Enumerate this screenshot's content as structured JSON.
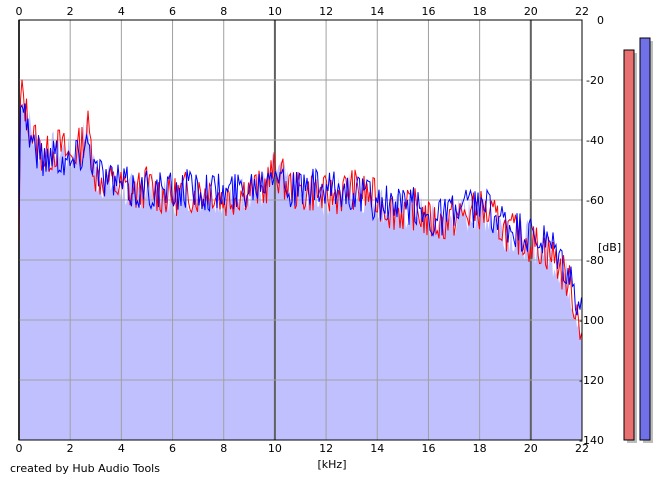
{
  "chart_data": {
    "type": "line",
    "xlabel": "[kHz]",
    "ylabel": "[dB]",
    "xlim": [
      0,
      22
    ],
    "ylim": [
      -140,
      0
    ],
    "x_ticks": [
      0,
      2,
      4,
      6,
      8,
      10,
      12,
      14,
      16,
      18,
      20,
      22
    ],
    "y_ticks": [
      0,
      -20,
      -40,
      -60,
      -80,
      -100,
      -120,
      -140
    ],
    "x_tick_labels": [
      "0",
      "2",
      "4",
      "6",
      "8",
      "10",
      "12",
      "14",
      "16",
      "18",
      "20",
      "22"
    ],
    "y_tick_labels": [
      "0",
      "-20",
      "-40",
      "-60",
      "-80",
      "-100",
      "-120",
      "-140"
    ],
    "grid": true,
    "fill_color": "#c0c0ff",
    "series": [
      {
        "color": "#ff0000",
        "x": [
          0,
          0.05,
          0.15,
          0.3,
          0.5,
          0.75,
          1.0,
          1.3,
          1.6,
          2.0,
          2.4,
          2.7,
          3.0,
          3.5,
          4.0,
          4.5,
          5.0,
          5.5,
          6.0,
          6.5,
          7.0,
          7.5,
          8.0,
          8.5,
          9.0,
          9.5,
          10.0,
          10.5,
          11.0,
          11.5,
          12.0,
          12.5,
          13.0,
          13.5,
          14.0,
          14.5,
          15.0,
          15.5,
          16.0,
          16.5,
          17.0,
          17.5,
          18.0,
          18.5,
          19.0,
          19.5,
          20.0,
          20.5,
          21.0,
          21.5,
          21.9,
          22.0
        ],
        "values": [
          -80,
          -28,
          -24,
          -32,
          -38,
          -42,
          -46,
          -44,
          -42,
          -46,
          -42,
          -36,
          -52,
          -54,
          -56,
          -58,
          -55,
          -58,
          -59,
          -57,
          -58,
          -56,
          -60,
          -58,
          -56,
          -57,
          -50,
          -55,
          -58,
          -57,
          -59,
          -58,
          -56,
          -58,
          -60,
          -63,
          -64,
          -63,
          -67,
          -68,
          -66,
          -65,
          -63,
          -66,
          -70,
          -72,
          -74,
          -76,
          -80,
          -88,
          -100,
          -103
        ]
      },
      {
        "color": "#0000ff",
        "x": [
          0,
          0.05,
          0.15,
          0.3,
          0.5,
          0.75,
          1.0,
          1.3,
          1.6,
          2.0,
          2.4,
          2.7,
          3.0,
          3.5,
          4.0,
          4.5,
          5.0,
          5.5,
          6.0,
          6.5,
          7.0,
          7.5,
          8.0,
          8.5,
          9.0,
          9.5,
          10.0,
          10.5,
          11.0,
          11.5,
          12.0,
          12.5,
          13.0,
          13.5,
          14.0,
          14.5,
          15.0,
          15.5,
          16.0,
          16.5,
          17.0,
          17.5,
          18.0,
          18.5,
          19.0,
          19.5,
          20.0,
          20.5,
          21.0,
          21.5,
          21.9,
          22.0
        ],
        "values": [
          -72,
          -22,
          -26,
          -34,
          -40,
          -44,
          -47,
          -43,
          -45,
          -48,
          -44,
          -40,
          -50,
          -53,
          -55,
          -57,
          -56,
          -57,
          -58,
          -56,
          -56,
          -57,
          -58,
          -57,
          -55,
          -53,
          -47,
          -56,
          -57,
          -56,
          -58,
          -57,
          -57,
          -59,
          -61,
          -62,
          -63,
          -62,
          -66,
          -65,
          -64,
          -63,
          -62,
          -64,
          -69,
          -71,
          -73,
          -75,
          -78,
          -86,
          -96,
          -100
        ]
      }
    ],
    "level_meters": [
      {
        "color": "#e87070",
        "level_db": -10
      },
      {
        "color": "#7070e8",
        "level_db": -6
      }
    ]
  },
  "footer": {
    "credit": "created by Hub Audio Tools"
  }
}
